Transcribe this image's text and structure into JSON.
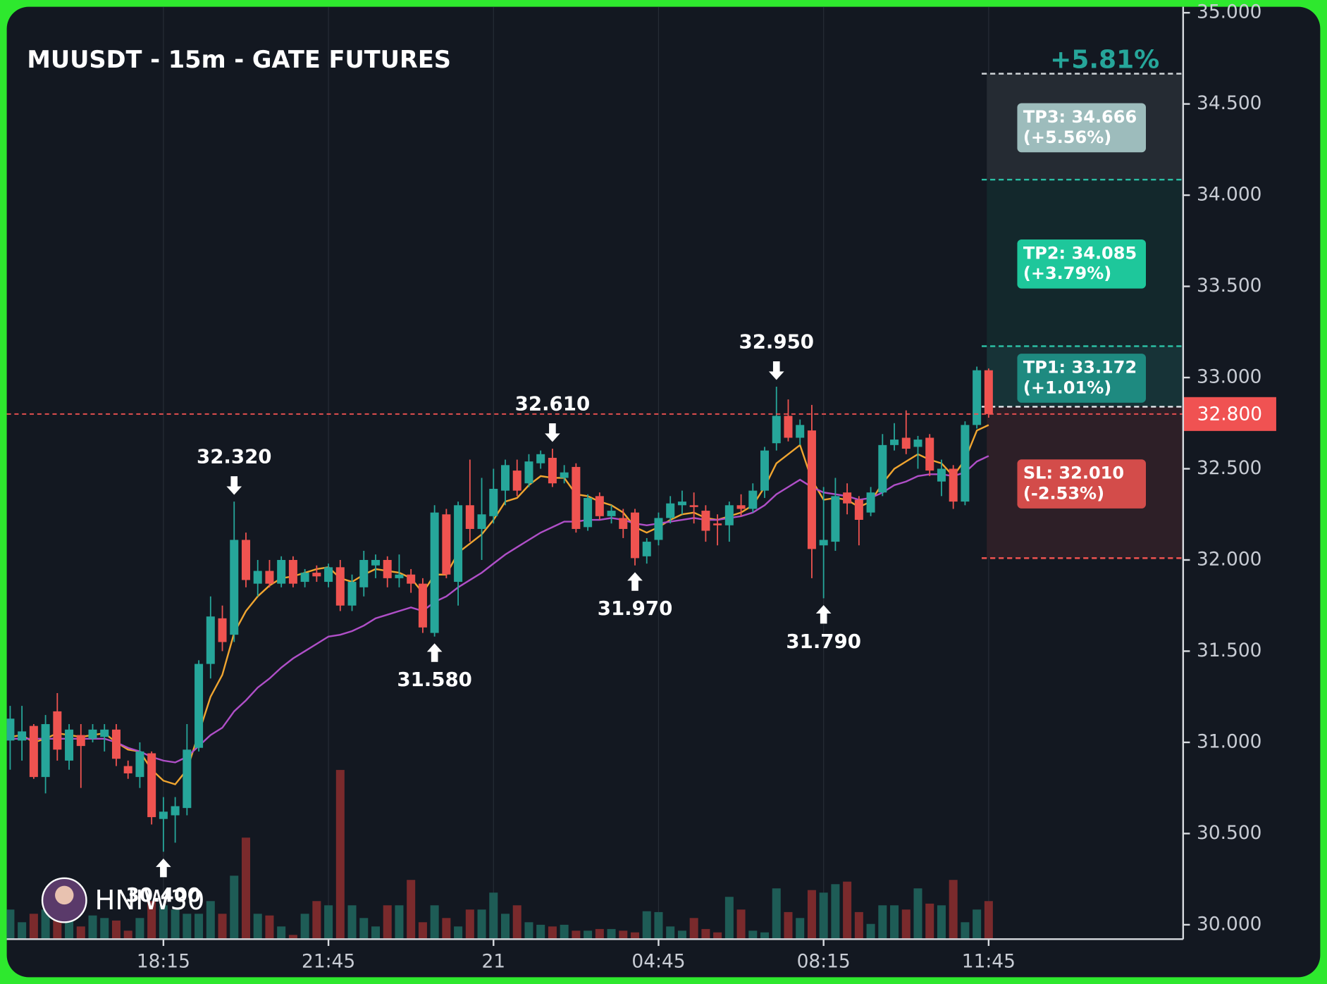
{
  "chart_data": {
    "type": "candlestick",
    "title": "MUUSDT - 15m - GATE FUTURES",
    "watermark": "HNIW30",
    "categories": [
      null,
      null,
      null,
      null,
      null,
      null,
      null,
      null,
      null,
      null,
      null,
      null,
      null,
      "18:15",
      null,
      null,
      null,
      null,
      null,
      null,
      null,
      null,
      null,
      null,
      null,
      null,
      null,
      "21:45",
      null,
      null,
      null,
      null,
      null,
      null,
      null,
      null,
      null,
      null,
      null,
      null,
      null,
      "21",
      null,
      null,
      null,
      null,
      null,
      null,
      null,
      null,
      null,
      null,
      null,
      null,
      null,
      "04:45",
      null,
      null,
      null,
      null,
      null,
      null,
      null,
      null,
      null,
      null,
      null,
      null,
      null,
      "08:15",
      null,
      null,
      null,
      null,
      null,
      null,
      null,
      null,
      null,
      null,
      null,
      null,
      null,
      "11:45"
    ],
    "open": [
      31.01,
      31.01,
      31.09,
      30.81,
      31.17,
      30.9,
      31.04,
      31.02,
      31.03,
      31.07,
      30.87,
      30.81,
      30.94,
      30.58,
      30.6,
      30.64,
      30.97,
      31.43,
      31.68,
      31.59,
      32.11,
      31.87,
      31.94,
      31.87,
      32.0,
      31.88,
      31.93,
      31.88,
      31.96,
      31.75,
      31.85,
      31.97,
      32.0,
      31.9,
      31.92,
      31.87,
      31.6,
      32.25,
      31.88,
      32.3,
      32.17,
      32.24,
      32.38,
      32.49,
      32.42,
      32.53,
      32.56,
      32.45,
      32.51,
      32.18,
      32.35,
      32.24,
      32.23,
      32.26,
      32.02,
      32.11,
      32.23,
      32.3,
      32.3,
      32.27,
      32.2,
      32.19,
      32.3,
      32.28,
      32.38,
      32.64,
      32.79,
      32.67,
      32.71,
      32.08,
      32.1,
      32.37,
      32.33,
      32.26,
      32.37,
      32.63,
      32.67,
      32.62,
      32.67,
      32.43,
      32.5,
      32.32,
      32.74,
      33.04
    ],
    "high": [
      31.2,
      31.2,
      31.1,
      31.15,
      31.27,
      31.1,
      31.1,
      31.1,
      31.1,
      31.1,
      30.9,
      31.0,
      30.95,
      30.7,
      30.7,
      31.1,
      31.45,
      31.8,
      31.75,
      32.32,
      32.15,
      32.0,
      32.0,
      32.02,
      32.02,
      31.95,
      31.97,
      31.98,
      32.0,
      31.92,
      32.05,
      32.03,
      32.02,
      32.03,
      31.95,
      31.9,
      32.3,
      32.28,
      32.32,
      32.55,
      32.45,
      32.5,
      32.55,
      32.55,
      32.58,
      32.6,
      32.61,
      32.52,
      32.53,
      32.36,
      32.37,
      32.3,
      32.28,
      32.28,
      32.12,
      32.26,
      32.35,
      32.38,
      32.37,
      32.3,
      32.25,
      32.32,
      32.36,
      32.42,
      32.62,
      32.95,
      32.88,
      32.77,
      32.85,
      32.4,
      32.45,
      32.42,
      32.35,
      32.4,
      32.69,
      32.75,
      32.82,
      32.68,
      32.69,
      32.55,
      32.52,
      32.76,
      33.06,
      33.05
    ],
    "low": [
      30.85,
      30.9,
      30.8,
      30.72,
      30.9,
      30.85,
      30.75,
      31.0,
      30.95,
      30.87,
      30.8,
      30.75,
      30.55,
      30.4,
      30.45,
      30.6,
      30.95,
      31.35,
      31.5,
      31.55,
      31.85,
      31.8,
      31.85,
      31.85,
      31.85,
      31.85,
      31.88,
      31.85,
      31.72,
      31.72,
      31.8,
      31.9,
      31.85,
      31.85,
      31.82,
      31.6,
      31.58,
      31.9,
      31.75,
      32.1,
      32.0,
      32.2,
      32.3,
      32.35,
      32.4,
      32.5,
      32.4,
      32.42,
      32.15,
      32.16,
      32.22,
      32.2,
      32.12,
      31.97,
      31.98,
      32.08,
      32.2,
      32.25,
      32.2,
      32.1,
      32.08,
      32.1,
      32.24,
      32.26,
      32.34,
      32.6,
      32.65,
      32.63,
      31.9,
      31.79,
      32.05,
      32.25,
      32.08,
      32.24,
      32.35,
      32.6,
      32.58,
      32.5,
      32.46,
      32.35,
      32.28,
      32.3,
      32.72,
      32.78
    ],
    "close": [
      31.13,
      31.06,
      30.81,
      31.1,
      30.96,
      31.07,
      30.98,
      31.07,
      31.07,
      30.91,
      30.83,
      30.95,
      30.59,
      30.62,
      30.65,
      30.96,
      31.43,
      31.69,
      31.55,
      32.11,
      31.89,
      31.94,
      31.87,
      32.0,
      31.87,
      31.93,
      31.91,
      31.96,
      31.75,
      31.88,
      32.0,
      32.0,
      31.9,
      31.92,
      31.87,
      31.63,
      32.26,
      31.92,
      32.3,
      32.17,
      32.25,
      32.39,
      32.52,
      32.38,
      32.54,
      32.58,
      32.42,
      32.48,
      32.17,
      32.34,
      32.24,
      32.27,
      32.17,
      32.01,
      32.1,
      32.23,
      32.31,
      32.32,
      32.29,
      32.16,
      32.19,
      32.3,
      32.28,
      32.38,
      32.6,
      32.79,
      32.67,
      32.74,
      32.06,
      32.11,
      32.35,
      32.31,
      32.22,
      32.37,
      32.63,
      32.66,
      32.61,
      32.66,
      32.49,
      32.5,
      32.32,
      32.74,
      33.04,
      32.8
    ],
    "volume": [
      35,
      20,
      30,
      35,
      25,
      30,
      15,
      28,
      25,
      22,
      10,
      25,
      45,
      40,
      35,
      30,
      30,
      45,
      30,
      75,
      120,
      30,
      28,
      15,
      5,
      30,
      45,
      40,
      200,
      40,
      25,
      15,
      40,
      40,
      70,
      20,
      40,
      25,
      15,
      35,
      35,
      55,
      30,
      40,
      20,
      17,
      15,
      17,
      10,
      10,
      12,
      12,
      10,
      8,
      33,
      32,
      15,
      10,
      25,
      12,
      8,
      50,
      35,
      10,
      8,
      60,
      32,
      25,
      58,
      55,
      65,
      68,
      32,
      18,
      40,
      40,
      35,
      60,
      42,
      40,
      70,
      20,
      35,
      45
    ],
    "up_color": "#26a69a",
    "down_color": "#ef5350",
    "ma_fast": {
      "color": "#f0a530",
      "values": [
        31.03,
        31.04,
        31.0,
        31.02,
        31.05,
        31.04,
        31.03,
        31.04,
        31.05,
        31.0,
        30.96,
        30.95,
        30.85,
        30.79,
        30.77,
        30.85,
        31.05,
        31.25,
        31.37,
        31.6,
        31.72,
        31.8,
        31.86,
        31.9,
        31.91,
        31.93,
        31.95,
        31.96,
        31.9,
        31.88,
        31.92,
        31.95,
        31.94,
        31.93,
        31.9,
        31.82,
        31.92,
        31.92,
        32.04,
        32.09,
        32.14,
        32.22,
        32.32,
        32.34,
        32.41,
        32.46,
        32.45,
        32.45,
        32.36,
        32.35,
        32.32,
        32.3,
        32.26,
        32.18,
        32.15,
        32.18,
        32.22,
        32.25,
        32.26,
        32.23,
        32.22,
        32.24,
        32.26,
        32.3,
        32.4,
        32.53,
        32.58,
        32.63,
        32.44,
        32.33,
        32.34,
        32.33,
        32.29,
        32.32,
        32.42,
        32.5,
        32.54,
        32.58,
        32.55,
        32.53,
        32.46,
        32.55,
        32.71,
        32.74
      ]
    },
    "ma_slow": {
      "color": "#b04fc8",
      "values": [
        31.02,
        31.02,
        31.02,
        31.02,
        31.02,
        31.02,
        31.02,
        31.02,
        31.02,
        31.0,
        30.97,
        30.95,
        30.92,
        30.9,
        30.89,
        30.92,
        30.98,
        31.04,
        31.08,
        31.17,
        31.23,
        31.3,
        31.35,
        31.41,
        31.46,
        31.5,
        31.54,
        31.58,
        31.59,
        31.61,
        31.64,
        31.68,
        31.7,
        31.72,
        31.74,
        31.72,
        31.77,
        31.8,
        31.85,
        31.89,
        31.93,
        31.98,
        32.03,
        32.07,
        32.11,
        32.15,
        32.18,
        32.21,
        32.21,
        32.22,
        32.22,
        32.23,
        32.22,
        32.2,
        32.19,
        32.2,
        32.21,
        32.22,
        32.23,
        32.22,
        32.22,
        32.23,
        32.24,
        32.26,
        32.3,
        32.36,
        32.4,
        32.44,
        32.4,
        32.37,
        32.36,
        32.35,
        32.33,
        32.34,
        32.37,
        32.41,
        32.43,
        32.46,
        32.47,
        32.47,
        32.46,
        32.48,
        32.54,
        32.57
      ]
    },
    "ylim": [
      29.921,
      35.07
    ],
    "yticks": [
      {
        "value": 30,
        "label": "30.000"
      },
      {
        "value": 30.5,
        "label": "30.500"
      },
      {
        "value": 31,
        "label": "31.000"
      },
      {
        "value": 31.5,
        "label": "31.500"
      },
      {
        "value": 32,
        "label": "32.000"
      },
      {
        "value": 32.5,
        "label": "32.500"
      },
      {
        "value": 33,
        "label": "33.000"
      },
      {
        "value": 33.5,
        "label": "33.500"
      },
      {
        "value": 34,
        "label": "34.000"
      },
      {
        "value": 34.5,
        "label": "34.500"
      },
      {
        "value": 35,
        "label": "35.000"
      }
    ],
    "grid": true,
    "annotations": [
      {
        "kind": "low",
        "value": 30.4,
        "label": "30.400"
      },
      {
        "kind": "high",
        "value": 32.32,
        "label": "32.320"
      },
      {
        "kind": "low",
        "value": 31.58,
        "label": "31.580"
      },
      {
        "kind": "high",
        "value": 32.61,
        "label": "32.610"
      },
      {
        "kind": "low",
        "value": 31.97,
        "label": "31.970"
      },
      {
        "kind": "high",
        "value": 32.95,
        "label": "32.950"
      },
      {
        "kind": "low",
        "value": 31.79,
        "label": "31.790"
      }
    ],
    "last_price": {
      "value": 32.8,
      "label": "32.800",
      "color": "#f05252"
    },
    "entry": 32.84,
    "target_pct": "+5.81%",
    "levels": [
      {
        "value": 34.666,
        "label": "TP3: 34.666",
        "pct": "(+5.56%)",
        "line_color": "#d0d4d8",
        "box_color": "#9dbcbc",
        "zone_color": "#252b33"
      },
      {
        "value": 34.085,
        "label": "TP2: 34.085",
        "pct": "(+3.79%)",
        "line_color": "#2bbfa4",
        "box_color": "#1ec79b",
        "zone_color": "#13282c"
      },
      {
        "value": 33.172,
        "label": "TP1: 33.172",
        "pct": "(+1.01%)",
        "line_color": "#2bbfa4",
        "box_color": "#1e8a80",
        "zone_color": "#173337"
      },
      {
        "value": 32.01,
        "label": "SL: 32.010",
        "pct": "(-2.53%)",
        "line_color": "#ef5350",
        "box_color": "#d34c4a",
        "zone_color": "#2d1f27"
      }
    ]
  }
}
